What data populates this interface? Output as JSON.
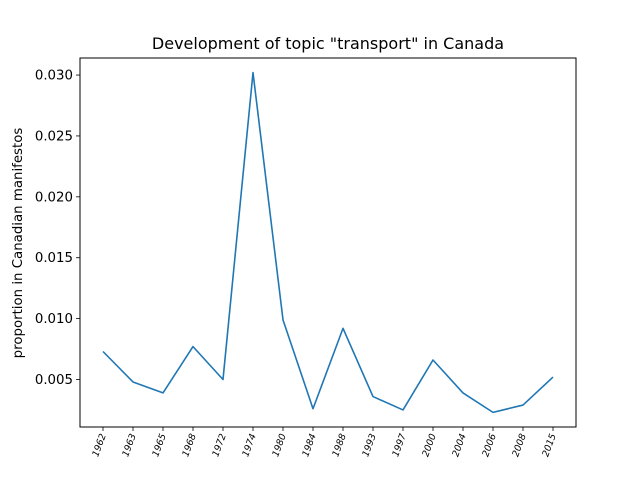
{
  "chart_data": {
    "type": "line",
    "title": "Development of topic \"transport\" in Canada",
    "xlabel": "",
    "ylabel": "proportion in Canadian manifestos",
    "categories": [
      "1962",
      "1963",
      "1965",
      "1968",
      "1972",
      "1974",
      "1980",
      "1984",
      "1988",
      "1993",
      "1997",
      "2000",
      "2004",
      "2006",
      "2008",
      "2015"
    ],
    "series": [
      {
        "values": [
          0.0073,
          0.0048,
          0.0039,
          0.0077,
          0.005,
          0.0302,
          0.0099,
          0.0026,
          0.0092,
          0.0036,
          0.0025,
          0.0066,
          0.0039,
          0.0023,
          0.0029,
          0.0052
        ],
        "color": "#1f77b4"
      }
    ],
    "ylim": [
      0.0011,
      0.0314
    ],
    "yticks": [
      0.005,
      0.01,
      0.015,
      0.02,
      0.025,
      0.03
    ],
    "ytick_labels": [
      "0.005",
      "0.010",
      "0.015",
      "0.020",
      "0.025",
      "0.030"
    ],
    "grid": false,
    "legend": "none"
  }
}
